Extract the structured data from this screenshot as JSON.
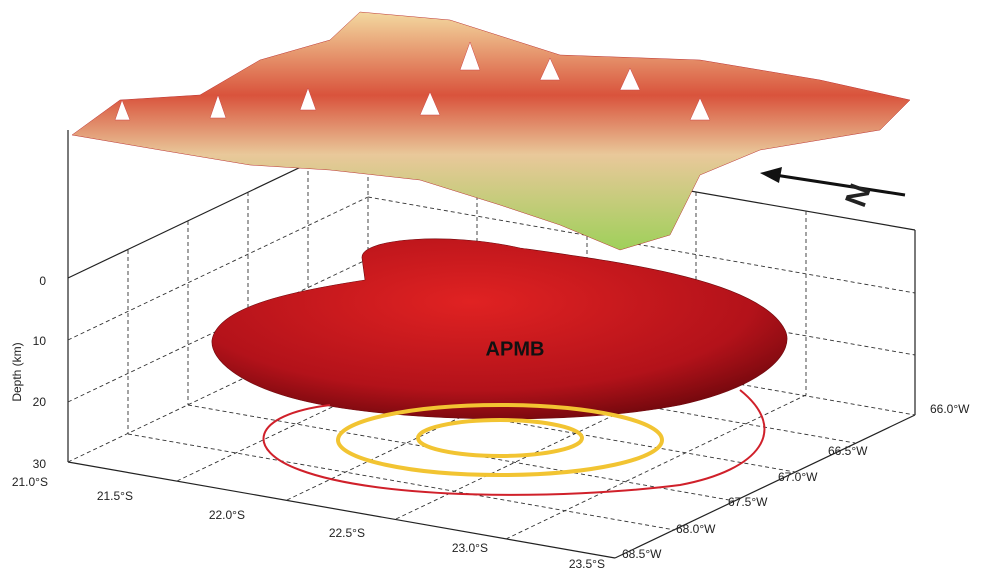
{
  "depth_axis": {
    "label": "Depth (km)",
    "ticks": [
      "0",
      "10",
      "20",
      "30"
    ]
  },
  "latitude_ticks": [
    "21.0°S",
    "21.5°S",
    "22.0°S",
    "22.5°S",
    "23.0°S",
    "23.5°S"
  ],
  "longitude_ticks": [
    "68.5°W",
    "68.0°W",
    "67.5°W",
    "67.0°W",
    "66.5°W",
    "66.0°W"
  ],
  "body_label": "APMB",
  "north_label": "N"
}
